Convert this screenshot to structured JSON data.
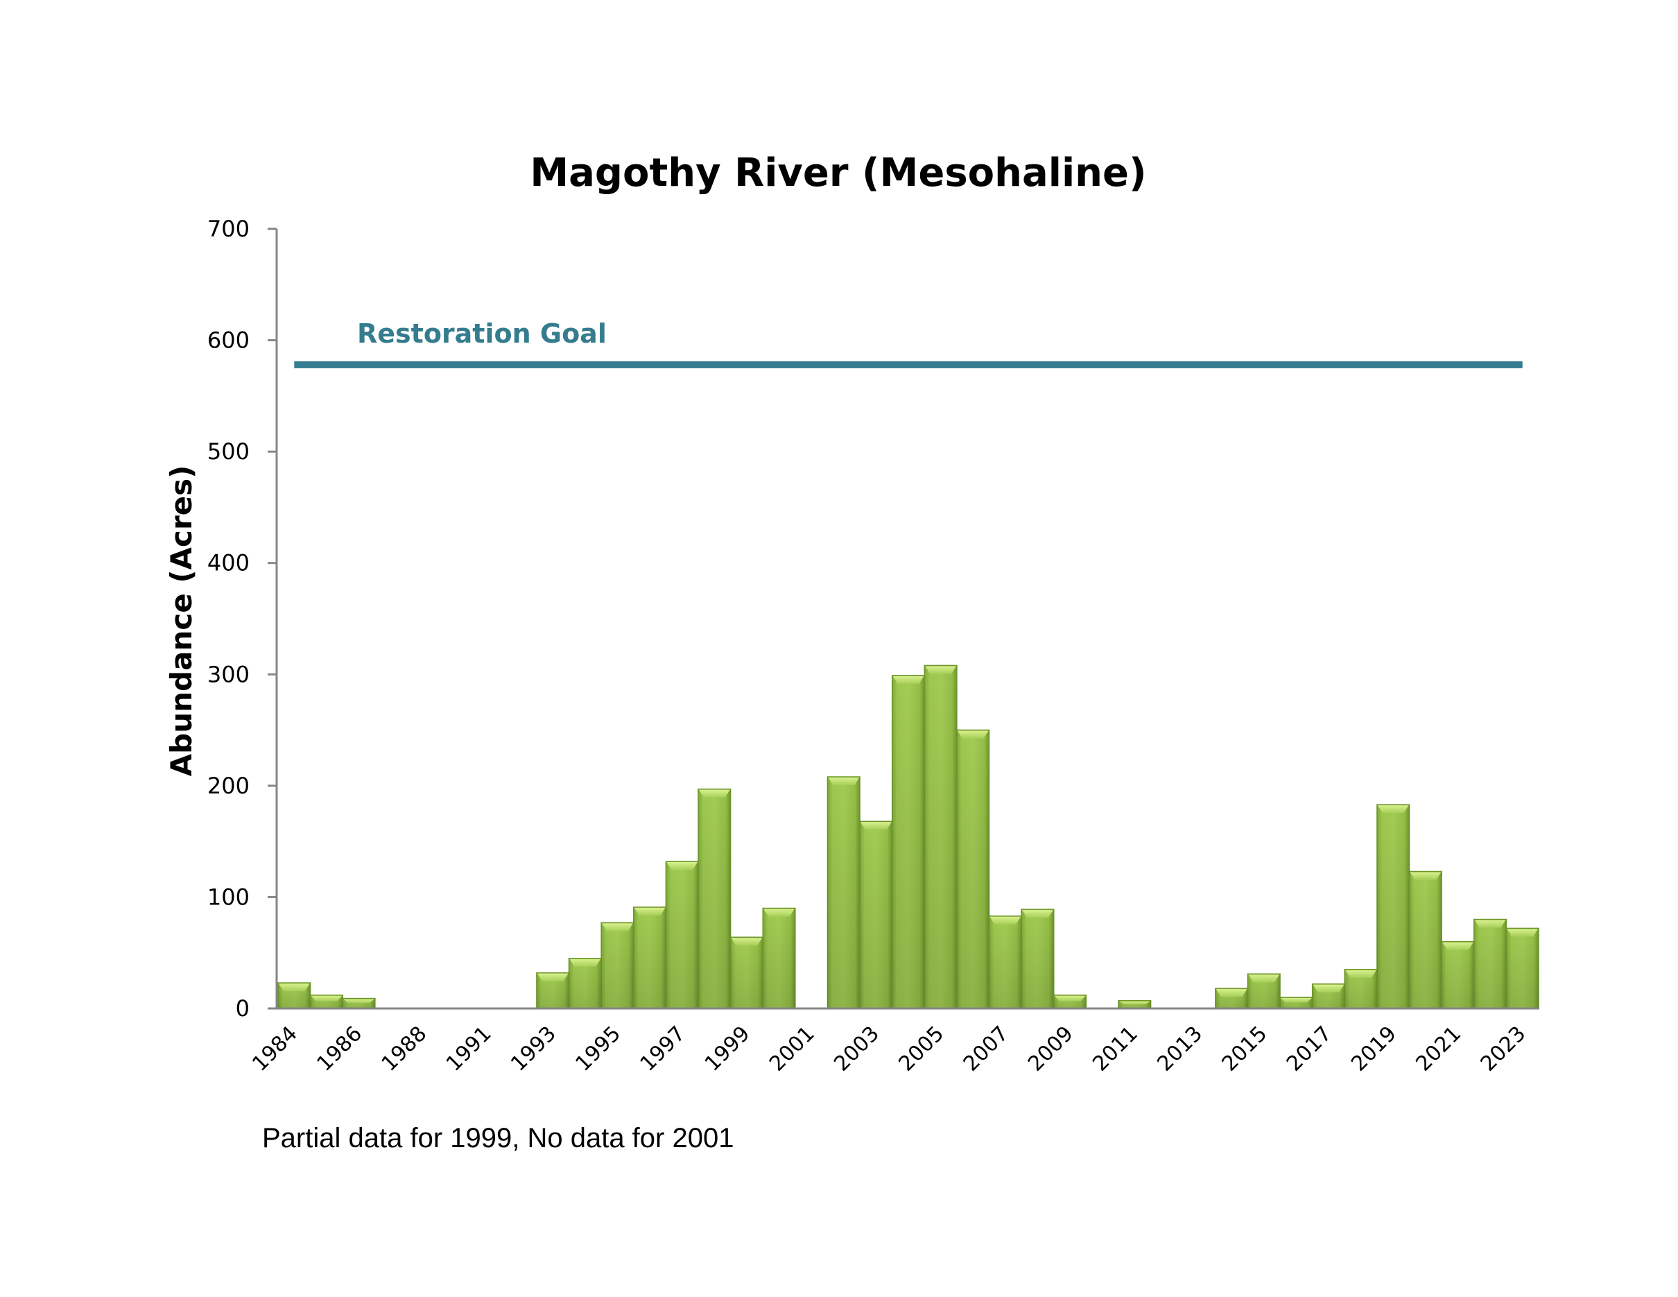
{
  "chart_data": {
    "type": "bar",
    "title": "Magothy River (Mesohaline)",
    "xlabel": "",
    "ylabel": "Abundance (Acres)",
    "ylim": [
      0,
      700
    ],
    "yticks": [
      0,
      100,
      200,
      300,
      400,
      500,
      600,
      700
    ],
    "grid": false,
    "legend": "none",
    "categories": [
      "1984",
      "1985",
      "1986",
      "1987",
      "1988",
      "1989",
      "1991",
      "1992",
      "1993",
      "1994",
      "1995",
      "1996",
      "1997",
      "1998",
      "1999",
      "2000",
      "2001",
      "2002",
      "2003",
      "2004",
      "2005",
      "2006",
      "2007",
      "2008",
      "2009",
      "2010",
      "2011",
      "2012",
      "2013",
      "2014",
      "2015",
      "2016",
      "2017",
      "2018",
      "2019",
      "2020",
      "2021",
      "2022",
      "2023"
    ],
    "category_labels_shown": [
      "1984",
      "1986",
      "1988",
      "1991",
      "1993",
      "1995",
      "1997",
      "1999",
      "2001",
      "2003",
      "2005",
      "2007",
      "2009",
      "2011",
      "2013",
      "2015",
      "2017",
      "2019",
      "2021",
      "2023"
    ],
    "series": [
      {
        "name": "Abundance",
        "color": "#9BC44A",
        "values": [
          23,
          12,
          9,
          0,
          0,
          0,
          0,
          0,
          32,
          45,
          77,
          91,
          132,
          197,
          64,
          90,
          null,
          208,
          168,
          299,
          308,
          250,
          83,
          89,
          12,
          0,
          7,
          0,
          0,
          18,
          31,
          10,
          22,
          35,
          183,
          123,
          60,
          80,
          72
        ]
      }
    ],
    "reference_line": {
      "label": "Restoration Goal",
      "value": 578,
      "color": "#347C8E"
    },
    "annotations": [
      "Partial data for 1999, No data for 2001"
    ]
  },
  "colors": {
    "bar_fill": "#9BC44A",
    "bar_highlight": "#C9E57E",
    "bar_edge": "#6C9428",
    "axis": "#868686",
    "goal": "#347C8E"
  }
}
